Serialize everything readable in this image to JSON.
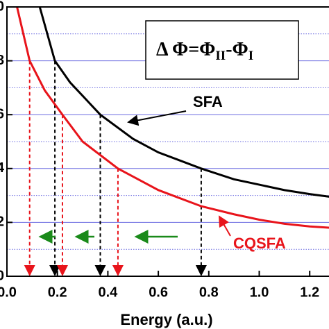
{
  "chart_data": {
    "type": "line",
    "xlabel": "Energy (a.u.)",
    "xlim": [
      0,
      1.28
    ],
    "ylim": [
      0,
      10
    ],
    "xticks": [
      {
        "value": 0,
        "label": "0.0"
      },
      0.2,
      0.4,
      0.6,
      0.8,
      {
        "value": 1,
        "label": "1.0"
      },
      1.2
    ],
    "yticks": [
      0,
      2,
      4,
      6,
      8,
      10
    ],
    "minor_yticks": [
      1,
      3,
      5,
      7,
      9
    ],
    "grid": true,
    "formula": {
      "base": "Δ Φ=Φ",
      "sub1": "II",
      "mid": "-Φ",
      "sub2": "I"
    },
    "series": [
      {
        "name": "SFA",
        "color": "#000000",
        "x": [
          0.13,
          0.19,
          0.25,
          0.37,
          0.5,
          0.6,
          0.77,
          0.9,
          1.0,
          1.1,
          1.2,
          1.28
        ],
        "values": [
          10,
          8,
          7.2,
          6,
          5.1,
          4.6,
          4.0,
          3.6,
          3.4,
          3.2,
          3.05,
          2.95
        ],
        "drops": [
          0.19,
          0.37,
          0.77
        ],
        "drop_values": [
          8,
          6,
          4
        ]
      },
      {
        "name": "CQSFA",
        "color": "#e8141b",
        "x": [
          0.04,
          0.09,
          0.15,
          0.22,
          0.3,
          0.44,
          0.6,
          0.77,
          0.9,
          1.0,
          1.1,
          1.2,
          1.28
        ],
        "values": [
          10,
          8,
          6.9,
          6,
          5.0,
          4.0,
          3.2,
          2.6,
          2.3,
          2.1,
          1.95,
          1.85,
          1.8
        ],
        "drops": [
          0.09,
          0.22,
          0.44
        ],
        "drop_values": [
          8,
          6,
          4
        ]
      }
    ]
  }
}
